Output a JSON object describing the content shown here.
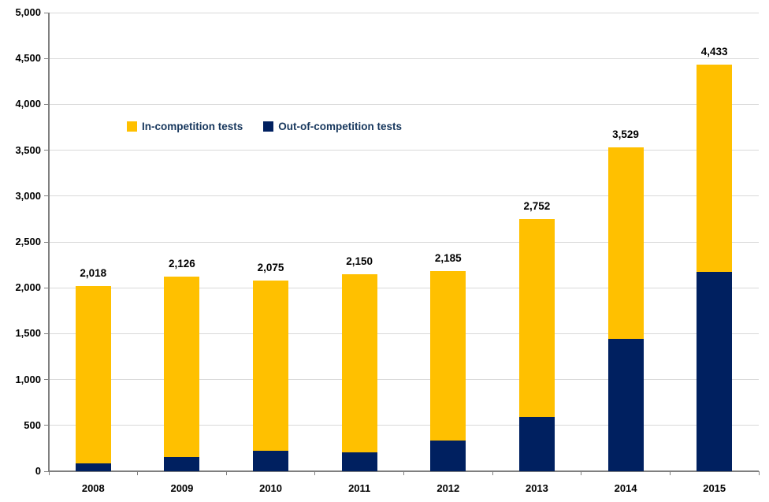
{
  "colors": {
    "in_competition": "#FFC000",
    "out_of_competition": "#002060",
    "gridline": "#D9D9D9",
    "axis": "#7F7F7F",
    "tick_label": "#000000",
    "legend_text": "#17375D",
    "background": "#FFFFFF"
  },
  "chart_data": {
    "type": "bar",
    "stacked": true,
    "title": "",
    "xlabel": "",
    "ylabel": "",
    "grid": true,
    "legend_position": "inside-top-left",
    "categories": [
      "2008",
      "2009",
      "2010",
      "2011",
      "2012",
      "2013",
      "2014",
      "2015"
    ],
    "series": [
      {
        "name": "In-competition tests",
        "color": "#FFC000",
        "values": [
          1928,
          1971,
          1855,
          1945,
          1850,
          2162,
          2089,
          2263
        ]
      },
      {
        "name": "Out-of-competition tests",
        "color": "#002060",
        "values": [
          90,
          155,
          220,
          205,
          335,
          590,
          1440,
          2170
        ]
      }
    ],
    "stack_order_bottom_to_top": [
      "Out-of-competition tests",
      "In-competition tests"
    ],
    "total_labels": [
      "2,018",
      "2,126",
      "2,075",
      "2,150",
      "2,185",
      "2,752",
      "3,529",
      "4,433"
    ],
    "ylim": [
      0,
      5000
    ],
    "ytick_step": 500,
    "ytick_labels": [
      "0",
      "500",
      "1,000",
      "1,500",
      "2,000",
      "2,500",
      "3,000",
      "3,500",
      "4,000",
      "4,500",
      "5,000"
    ]
  }
}
